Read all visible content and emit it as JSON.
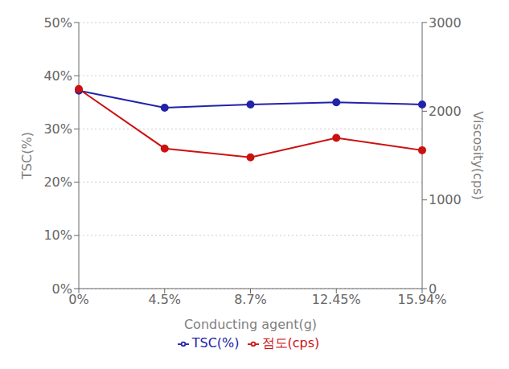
{
  "chart_data": {
    "type": "line",
    "categories": [
      "0%",
      "4.5%",
      "8.7%",
      "12.45%",
      "15.94%"
    ],
    "series": [
      {
        "name": "TSC(%)",
        "color": "#2222AA",
        "values": [
          37.2,
          34.0,
          34.6,
          35.0,
          34.6
        ],
        "axis": "y",
        "marker": "circle"
      },
      {
        "name": "점도(cps)",
        "color": "#CC1111",
        "values": [
          2250,
          1580,
          1480,
          1700,
          1560
        ],
        "axis": "y2",
        "marker": "circle"
      }
    ],
    "xlabel": "Conducting agent(g)",
    "ylabel": "TSC(%)",
    "y2label": "Viscosity(cps)",
    "ylim": [
      0,
      50
    ],
    "yticks": [
      {
        "value": 0,
        "label": "0%"
      },
      {
        "value": 10,
        "label": "10%"
      },
      {
        "value": 20,
        "label": "20%"
      },
      {
        "value": 30,
        "label": "30%"
      },
      {
        "value": 40,
        "label": "40%"
      },
      {
        "value": 50,
        "label": "50%"
      }
    ],
    "y2lim": [
      0,
      3000
    ],
    "y2ticks": [
      0,
      1000,
      2000,
      3000
    ],
    "grid": true,
    "legend": "bottom"
  }
}
